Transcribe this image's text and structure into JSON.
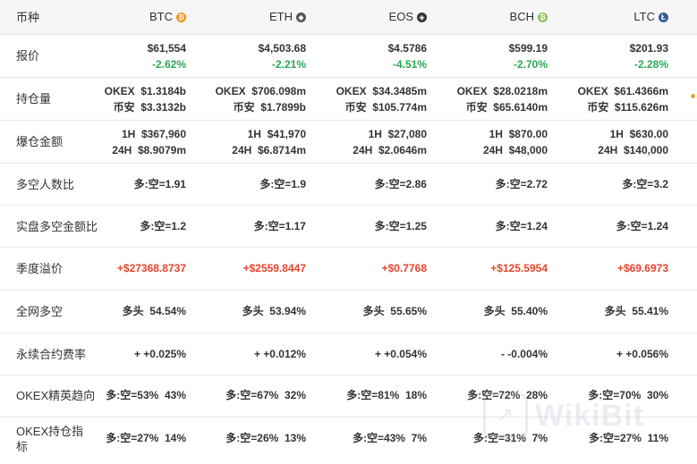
{
  "header": {
    "label": "币种",
    "coins": [
      {
        "name": "BTC",
        "icon": "bitcoin-icon",
        "color": "#f7931a",
        "glyph": "₿"
      },
      {
        "name": "ETH",
        "icon": "ethereum-icon",
        "color": "#555555",
        "glyph": "◆"
      },
      {
        "name": "EOS",
        "icon": "eos-icon",
        "color": "#333333",
        "glyph": "◈"
      },
      {
        "name": "BCH",
        "icon": "bitcoin-cash-icon",
        "color": "#8dc351",
        "glyph": "₿"
      },
      {
        "name": "LTC",
        "icon": "litecoin-icon",
        "color": "#345d9d",
        "glyph": "Ł"
      }
    ]
  },
  "rows": {
    "price": {
      "label": "报价",
      "values": [
        {
          "price": "$61,554",
          "change": "-2.62%"
        },
        {
          "price": "$4,503.68",
          "change": "-2.21%"
        },
        {
          "price": "$4.5786",
          "change": "-4.51%"
        },
        {
          "price": "$599.19",
          "change": "-2.70%"
        },
        {
          "price": "$201.93",
          "change": "-2.28%"
        }
      ]
    },
    "holdings": {
      "label": "持仓量",
      "values": [
        {
          "okex": "OKEX  $1.3184b",
          "binance": "币安  $3.3132b"
        },
        {
          "okex": "OKEX  $706.098m",
          "binance": "币安  $1.7899b"
        },
        {
          "okex": "OKEX  $34.3485m",
          "binance": "币安  $105.774m"
        },
        {
          "okex": "OKEX  $28.0218m",
          "binance": "币安  $65.6140m"
        },
        {
          "okex": "OKEX  $61.4366m",
          "binance": "币安  $115.626m"
        }
      ]
    },
    "liquidation": {
      "label": "爆仓金额",
      "values": [
        {
          "h1": "1H  $367,960",
          "h24": "24H  $8.9079m"
        },
        {
          "h1": "1H  $41,970",
          "h24": "24H  $6.8714m"
        },
        {
          "h1": "1H  $27,080",
          "h24": "24H  $2.0646m"
        },
        {
          "h1": "1H  $870.00",
          "h24": "24H  $48,000"
        },
        {
          "h1": "1H  $630.00",
          "h24": "24H  $140,000"
        }
      ]
    },
    "long_short_people": {
      "label": "多空人数比",
      "values": [
        "多:空=1.91",
        "多:空=1.9",
        "多:空=2.86",
        "多:空=2.72",
        "多:空=3.2"
      ]
    },
    "long_short_amount": {
      "label": "实盘多空金额比",
      "values": [
        "多:空=1.2",
        "多:空=1.17",
        "多:空=1.25",
        "多:空=1.24",
        "多:空=1.24"
      ]
    },
    "quarterly_premium": {
      "label": "季度溢价",
      "values": [
        "+$27368.8737",
        "+$2559.8447",
        "+$0.7768",
        "+$125.5954",
        "+$69.6973"
      ]
    },
    "network_long_short": {
      "label": "全网多空",
      "values": [
        "多头  54.54%",
        "多头  53.94%",
        "多头  55.65%",
        "多头  55.40%",
        "多头  55.41%"
      ]
    },
    "funding_rate": {
      "label": "永续合约费率",
      "values": [
        "+ +0.025%",
        "+ +0.012%",
        "+ +0.054%",
        "- -0.004%",
        "+ +0.056%"
      ]
    },
    "okex_elite": {
      "label": "OKEX精英趋向",
      "values": [
        "多:空=53%  43%",
        "多:空=67%  32%",
        "多:空=81%  18%",
        "多:空=72%  28%",
        "多:空=70%  30%"
      ]
    },
    "okex_position": {
      "label": "OKEX持仓指标",
      "values": [
        "多:空=27%  14%",
        "多:空=26%  13%",
        "多:空=43%  7%",
        "多:空=31%  7%",
        "多:空=27%  11%"
      ]
    }
  },
  "watermark": "WikiBit",
  "colors": {
    "negative": "#2aa853",
    "positive": "#e6432c"
  }
}
